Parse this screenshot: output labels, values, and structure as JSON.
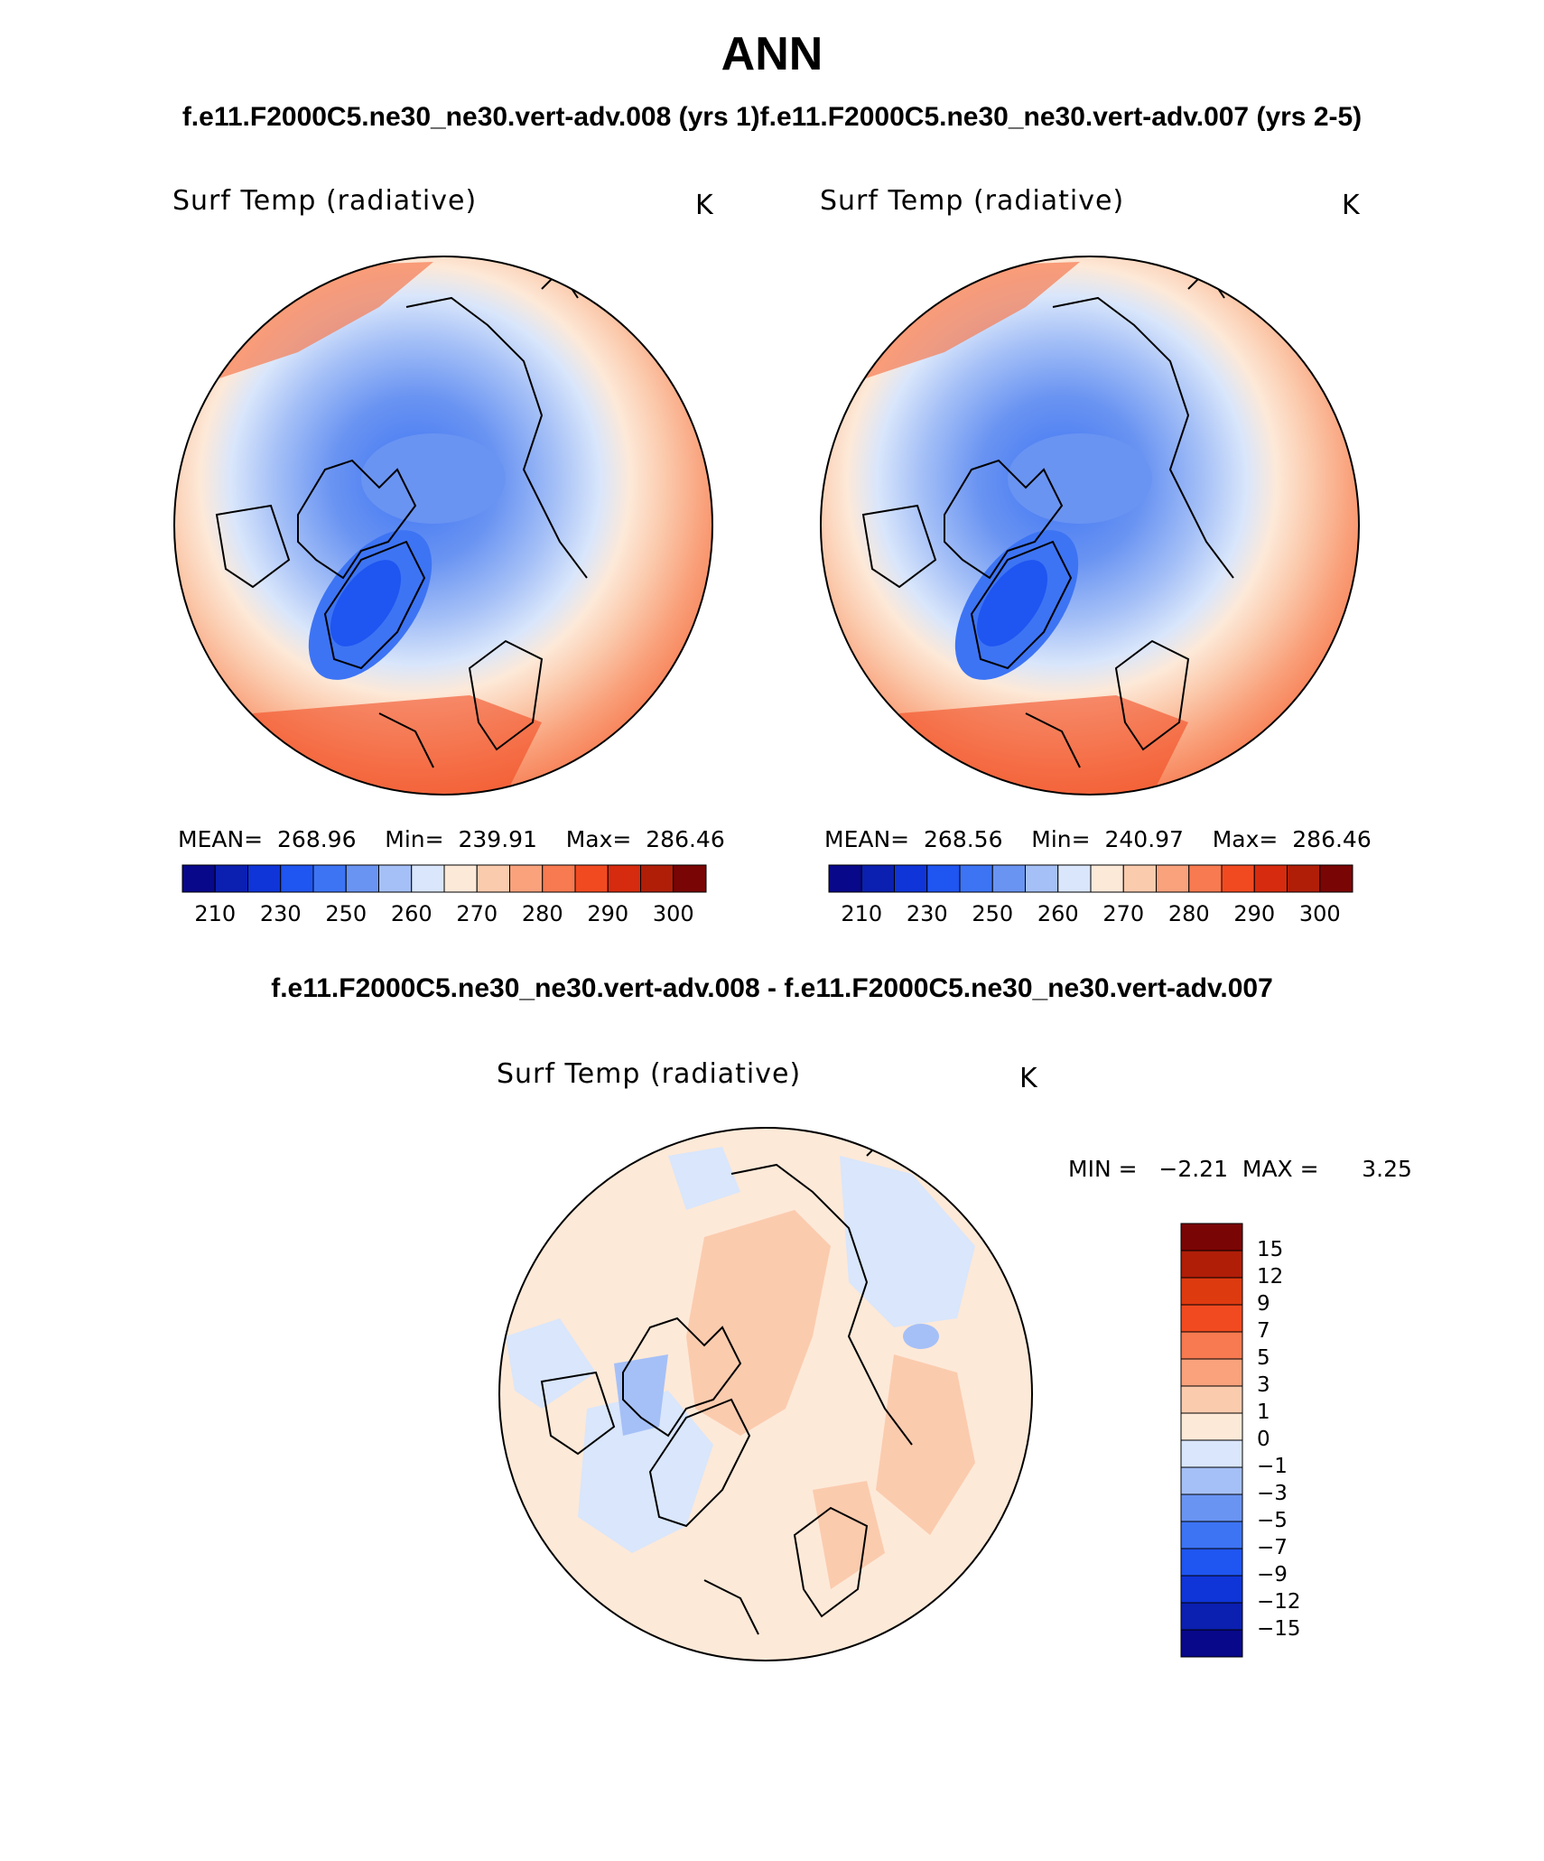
{
  "title": "ANN",
  "subtitle_top": "f.e11.F2000C5.ne30_ne30.vert-adv.008 (yrs 1)f.e11.F2000C5.ne30_ne30.vert-adv.007 (yrs 2-5)",
  "subtitle_diff": "f.e11.F2000C5.ne30_ne30.vert-adv.008 - f.e11.F2000C5.ne30_ne30.vert-adv.007",
  "panels": [
    {
      "variable": "Surf Temp (radiative)",
      "units": "K",
      "stats": "MEAN=  268.96    Min=  239.91    Max=  286.46"
    },
    {
      "variable": "Surf Temp (radiative)",
      "units": "K",
      "stats": "MEAN=  268.56    Min=  240.97    Max=  286.46"
    }
  ],
  "diff_panel": {
    "variable": "Surf Temp (radiative)",
    "units": "K",
    "stats": "MIN =   −2.21  MAX =      3.25"
  },
  "abs_colorbar": {
    "colors": [
      "#08088a",
      "#0b1fb0",
      "#0f35d8",
      "#1f55f0",
      "#3d74f4",
      "#6a94f2",
      "#a5c0f7",
      "#d9e6fb",
      "#fde9d8",
      "#fbcbae",
      "#f9a27c",
      "#f77a50",
      "#f24a20",
      "#d62b0e",
      "#b01e08",
      "#7a0505"
    ],
    "labels": [
      "210",
      "230",
      "250",
      "260",
      "270",
      "280",
      "290",
      "300"
    ]
  },
  "diff_colorbar": {
    "colors": [
      "#7a0505",
      "#b01e08",
      "#de3a10",
      "#f24a20",
      "#f77a50",
      "#f9a27c",
      "#fbcbae",
      "#fde9d8",
      "#d9e6fb",
      "#a5c0f7",
      "#6a94f2",
      "#3d74f4",
      "#1f55f0",
      "#0f35d8",
      "#0b1fb0",
      "#08088a"
    ],
    "labels": [
      "15",
      "12",
      "9",
      "7",
      "5",
      "3",
      "1",
      "0",
      "−1",
      "−3",
      "−5",
      "−7",
      "−9",
      "−12",
      "−15"
    ]
  }
}
